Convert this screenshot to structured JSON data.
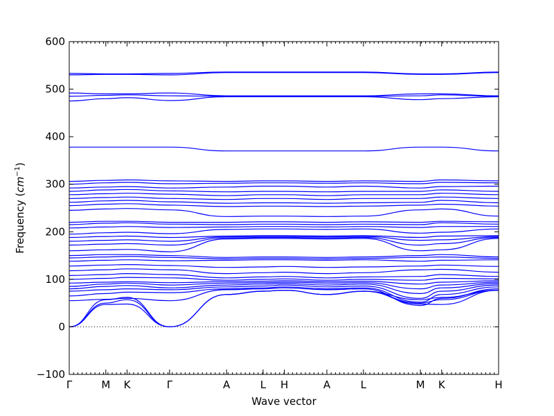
{
  "chart_data": {
    "type": "line",
    "title": "",
    "xlabel": "Wave vector",
    "ylabel_main": "Frequency (",
    "ylabel_unit": "cm",
    "ylabel_exp": "−1",
    "ylabel_close": ")",
    "ylim": [
      -100,
      600
    ],
    "yticks": [
      -100,
      0,
      100,
      200,
      300,
      400,
      500,
      600
    ],
    "ytick_labels": [
      "−100",
      "0",
      "100",
      "200",
      "300",
      "400",
      "500",
      "600"
    ],
    "high_symmetry_points": [
      {
        "label": "Γ",
        "x": 0.0
      },
      {
        "label": "M",
        "x": 0.86
      },
      {
        "label": "K",
        "x": 1.36
      },
      {
        "label": "Γ",
        "x": 2.36
      },
      {
        "label": "A",
        "x": 3.7
      },
      {
        "label": "L",
        "x": 4.56
      },
      {
        "label": "H",
        "x": 5.06
      },
      {
        "label": "A",
        "x": 6.06
      },
      {
        "label": "L",
        "x": 6.92
      },
      {
        "label": "M",
        "x": 8.26
      },
      {
        "label": "K",
        "x": 8.76
      },
      {
        "label": "H",
        "x": 10.1
      }
    ],
    "xlim": [
      0,
      10.1
    ],
    "zero_line": 0,
    "line_color": "#0000ff",
    "series": [
      {
        "values": [
          0,
          47,
          48,
          0,
          68,
          75,
          77,
          68,
          75,
          48,
          47,
          77
        ]
      },
      {
        "values": [
          0,
          50,
          57,
          0,
          68,
          75,
          77,
          68,
          75,
          50,
          57,
          77
        ]
      },
      {
        "values": [
          0,
          57,
          62,
          0,
          68,
          75,
          77,
          68,
          75,
          57,
          62,
          77
        ]
      },
      {
        "values": [
          55,
          58,
          60,
          55,
          78,
          80,
          82,
          78,
          80,
          45,
          60,
          80
        ]
      },
      {
        "values": [
          65,
          70,
          73,
          72,
          80,
          82,
          84,
          80,
          82,
          52,
          68,
          84
        ]
      },
      {
        "values": [
          75,
          78,
          80,
          78,
          84,
          86,
          88,
          84,
          86,
          60,
          75,
          88
        ]
      },
      {
        "values": [
          80,
          85,
          87,
          82,
          88,
          90,
          91,
          88,
          90,
          70,
          82,
          91
        ]
      },
      {
        "values": [
          85,
          90,
          92,
          88,
          92,
          93,
          94,
          92,
          93,
          80,
          88,
          94
        ]
      },
      {
        "values": [
          92,
          94,
          95,
          93,
          95,
          96,
          97,
          95,
          96,
          90,
          94,
          97
        ]
      },
      {
        "values": [
          100,
          102,
          104,
          103,
          98,
          100,
          101,
          98,
          100,
          98,
          102,
          101
        ]
      },
      {
        "values": [
          108,
          110,
          112,
          110,
          103,
          105,
          106,
          103,
          105,
          106,
          110,
          106
        ]
      },
      {
        "values": [
          118,
          120,
          122,
          120,
          112,
          114,
          115,
          112,
          114,
          120,
          121,
          115
        ]
      },
      {
        "values": [
          128,
          130,
          131,
          129,
          125,
          126,
          127,
          125,
          126,
          128,
          130,
          127
        ]
      },
      {
        "values": [
          138,
          140,
          141,
          139,
          140,
          141,
          141,
          140,
          141,
          138,
          140,
          141
        ]
      },
      {
        "values": [
          145,
          147,
          148,
          146,
          143,
          144,
          144,
          143,
          144,
          146,
          147,
          144
        ]
      },
      {
        "values": [
          150,
          152,
          152,
          150,
          146,
          147,
          147,
          146,
          147,
          150,
          152,
          147
        ]
      },
      {
        "values": [
          160,
          162,
          163,
          158,
          185,
          186,
          186,
          185,
          186,
          160,
          162,
          186
        ]
      },
      {
        "values": [
          172,
          174,
          175,
          172,
          187,
          188,
          188,
          187,
          188,
          172,
          175,
          188
        ]
      },
      {
        "values": [
          180,
          182,
          183,
          180,
          189,
          190,
          190,
          189,
          190,
          182,
          183,
          190
        ]
      },
      {
        "values": [
          188,
          190,
          191,
          188,
          191,
          192,
          192,
          191,
          192,
          188,
          191,
          192
        ]
      },
      {
        "values": [
          195,
          198,
          199,
          196,
          205,
          206,
          206,
          205,
          206,
          197,
          199,
          206
        ]
      },
      {
        "values": [
          208,
          210,
          211,
          209,
          210,
          211,
          211,
          210,
          211,
          209,
          211,
          211
        ]
      },
      {
        "values": [
          215,
          218,
          219,
          216,
          215,
          216,
          216,
          215,
          216,
          215,
          219,
          216
        ]
      },
      {
        "values": [
          220,
          222,
          222,
          220,
          220,
          221,
          221,
          220,
          221,
          220,
          222,
          221
        ]
      },
      {
        "values": [
          245,
          248,
          249,
          246,
          232,
          233,
          233,
          232,
          233,
          246,
          248,
          233
        ]
      },
      {
        "values": [
          255,
          258,
          259,
          256,
          253,
          254,
          254,
          253,
          254,
          256,
          258,
          254
        ]
      },
      {
        "values": [
          262,
          265,
          266,
          263,
          260,
          261,
          261,
          260,
          261,
          262,
          266,
          261
        ]
      },
      {
        "values": [
          270,
          272,
          273,
          270,
          268,
          270,
          270,
          268,
          270,
          270,
          273,
          270
        ]
      },
      {
        "values": [
          278,
          280,
          281,
          279,
          276,
          278,
          278,
          276,
          278,
          278,
          281,
          278
        ]
      },
      {
        "values": [
          285,
          288,
          289,
          286,
          284,
          285,
          285,
          284,
          285,
          285,
          288,
          285
        ]
      },
      {
        "values": [
          292,
          294,
          295,
          292,
          294,
          296,
          296,
          294,
          296,
          292,
          295,
          296
        ]
      },
      {
        "values": [
          300,
          303,
          304,
          301,
          302,
          303,
          303,
          302,
          303,
          301,
          304,
          303
        ]
      },
      {
        "values": [
          306,
          308,
          309,
          307,
          306,
          307,
          307,
          306,
          307,
          306,
          309,
          307
        ]
      },
      {
        "values": [
          378,
          378,
          378,
          378,
          370,
          370,
          370,
          370,
          370,
          378,
          378,
          370
        ]
      },
      {
        "values": [
          475,
          480,
          482,
          476,
          484,
          484,
          484,
          484,
          484,
          478,
          480,
          484
        ]
      },
      {
        "values": [
          485,
          487,
          488,
          486,
          485,
          485,
          485,
          485,
          485,
          486,
          488,
          485
        ]
      },
      {
        "values": [
          492,
          490,
          490,
          492,
          486,
          486,
          486,
          486,
          486,
          490,
          490,
          486
        ]
      },
      {
        "values": [
          530,
          531,
          531,
          530,
          535,
          535,
          535,
          535,
          535,
          531,
          531,
          535
        ]
      },
      {
        "values": [
          533,
          532,
          532,
          533,
          536,
          536,
          536,
          536,
          536,
          532,
          532,
          536
        ]
      }
    ]
  }
}
